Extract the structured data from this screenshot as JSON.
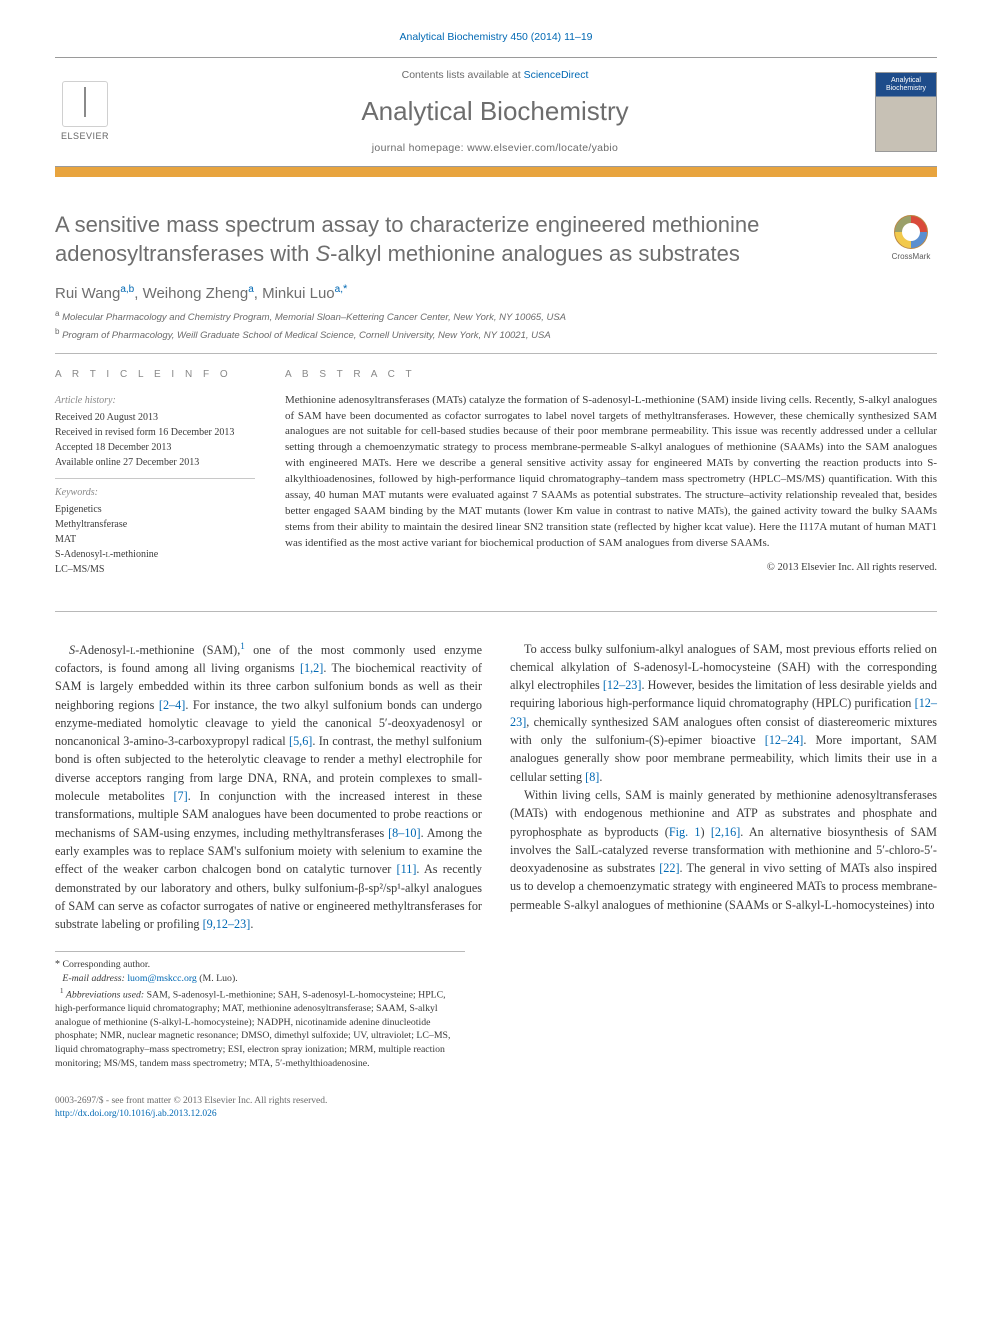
{
  "header": {
    "reference": "Analytical Biochemistry 450 (2014) 11–19",
    "contents_prefix": "Contents lists available at ",
    "contents_link": "ScienceDirect",
    "journal": "Analytical Biochemistry",
    "homepage_prefix": "journal homepage: ",
    "homepage_url": "www.elsevier.com/locate/yabio",
    "publisher": "ELSEVIER",
    "cover_label": "Analytical Biochemistry"
  },
  "crossmark": {
    "label": "CrossMark"
  },
  "title": {
    "pre": "A sensitive mass spectrum assay to characterize engineered methionine adenosyltransferases with ",
    "ital": "S",
    "post": "-alkyl methionine analogues as substrates"
  },
  "authors": {
    "a1": {
      "name": "Rui Wang",
      "aff": "a,b"
    },
    "a2": {
      "name": "Weihong Zheng",
      "aff": "a"
    },
    "a3": {
      "name": "Minkui Luo",
      "aff": "a,",
      "star": "*"
    }
  },
  "affiliations": {
    "a": "Molecular Pharmacology and Chemistry Program, Memorial Sloan–Kettering Cancer Center, New York, NY 10065, USA",
    "b": "Program of Pharmacology, Weill Graduate School of Medical Science, Cornell University, New York, NY 10021, USA"
  },
  "article_info": {
    "heading": "A R T I C L E   I N F O",
    "history_head": "Article history:",
    "history": {
      "received": "Received 20 August 2013",
      "revised": "Received in revised form 16 December 2013",
      "accepted": "Accepted 18 December 2013",
      "online": "Available online 27 December 2013"
    },
    "keywords_head": "Keywords:",
    "keywords": {
      "k1": "Epigenetics",
      "k2": "Methyltransferase",
      "k3": "MAT",
      "k4": "S-Adenosyl-L-methionine",
      "k5": "LC–MS/MS"
    }
  },
  "abstract": {
    "heading": "A B S T R A C T",
    "text": "Methionine adenosyltransferases (MATs) catalyze the formation of S-adenosyl-L-methionine (SAM) inside living cells. Recently, S-alkyl analogues of SAM have been documented as cofactor surrogates to label novel targets of methyltransferases. However, these chemically synthesized SAM analogues are not suitable for cell-based studies because of their poor membrane permeability. This issue was recently addressed under a cellular setting through a chemoenzymatic strategy to process membrane-permeable S-alkyl analogues of methionine (SAAMs) into the SAM analogues with engineered MATs. Here we describe a general sensitive activity assay for engineered MATs by converting the reaction products into S-alkylthioadenosines, followed by high-performance liquid chromatography–tandem mass spectrometry (HPLC–MS/MS) quantification. With this assay, 40 human MAT mutants were evaluated against 7 SAAMs as potential substrates. The structure–activity relationship revealed that, besides better engaged SAAM binding by the MAT mutants (lower Km value in contrast to native MATs), the gained activity toward the bulky SAAMs stems from their ability to maintain the desired linear SN2 transition state (reflected by higher kcat value). Here the I117A mutant of human MAT1 was identified as the most active variant for biochemical production of SAM analogues from diverse SAAMs.",
    "copyright": "© 2013 Elsevier Inc. All rights reserved."
  },
  "body": {
    "p1a": "S-Adenosyl-L-methionine (SAM),",
    "p1b": " one of the most commonly used enzyme cofactors, is found among all living organisms ",
    "r1": "[1,2]",
    "p1c": ". The biochemical reactivity of SAM is largely embedded within its three carbon sulfonium bonds as well as their neighboring regions ",
    "r2": "[2–4]",
    "p1d": ". For instance, the two alkyl sulfonium bonds can undergo enzyme-mediated homolytic cleavage to yield the canonical 5′-deoxyadenosyl or noncanonical 3-amino-3-carboxypropyl radical ",
    "r3": "[5,6]",
    "p1e": ". In contrast, the methyl sulfonium bond is often subjected to the heterolytic cleavage to render a methyl electrophile for diverse acceptors ranging from large DNA, RNA, and protein complexes to small-molecule metabolites ",
    "r4": "[7]",
    "p1f": ". In conjunction with the increased interest in these transformations, multiple SAM analogues have been documented to probe reactions or mechanisms of SAM-using enzymes, including methyltransferases ",
    "r5": "[8–10]",
    "p1g": ". Among the early examples was to replace SAM's sulfonium moiety with selenium to examine",
    "p2a": "the effect of the weaker carbon chalcogen bond on catalytic turnover ",
    "r6": "[11]",
    "p2b": ". As recently demonstrated by our laboratory and others, bulky sulfonium-β-sp²/sp¹-alkyl analogues of SAM can serve as cofactor surrogates of native or engineered methyltransferases for substrate labeling or profiling ",
    "r7": "[9,12–23]",
    "p2c": ".",
    "p3a": "To access bulky sulfonium-alkyl analogues of SAM, most previous efforts relied on chemical alkylation of S-adenosyl-L-homocysteine (SAH) with the corresponding alkyl electrophiles ",
    "r8": "[12–23]",
    "p3b": ". However, besides the limitation of less desirable yields and requiring laborious high-performance liquid chromatography (HPLC) purification ",
    "r9": "[12–23]",
    "p3c": ", chemically synthesized SAM analogues often consist of diastereomeric mixtures with only the sulfonium-(S)-epimer bioactive ",
    "r10": "[12–24]",
    "p3d": ". More important, SAM analogues generally show poor membrane permeability, which limits their use in a cellular setting ",
    "r11": "[8]",
    "p3e": ".",
    "p4a": "Within living cells, SAM is mainly generated by methionine adenosyltransferases (MATs) with endogenous methionine and ATP as substrates and phosphate and pyrophosphate as byproducts (",
    "r12": "Fig. 1",
    "p4b": ") ",
    "r13": "[2,16]",
    "p4c": ". An alternative biosynthesis of SAM involves the SalL-catalyzed reverse transformation with methionine and 5′-chloro-5′-deoxyadenosine as substrates ",
    "r14": "[22]",
    "p4d": ". The general in vivo setting of MATs also inspired us to develop a chemoenzymatic strategy with engineered MATs to process membrane-permeable S-alkyl analogues of methionine (SAAMs or S-alkyl-L-homocysteines) into"
  },
  "footnotes": {
    "corr_star": "*",
    "corr": " Corresponding author.",
    "email_label": "E-mail address: ",
    "email": "luom@mskcc.org",
    "email_who": " (M. Luo).",
    "abbr_sup": "1",
    "abbr_label": " Abbreviations used:",
    "abbr": " SAM, S-adenosyl-L-methionine; SAH, S-adenosyl-L-homocysteine; HPLC, high-performance liquid chromatography; MAT, methionine adenosyltransferase; SAAM, S-alkyl analogue of methionine (S-alkyl-L-homocysteine); NADPH, nicotinamide adenine dinucleotide phosphate; NMR, nuclear magnetic resonance; DMSO, dimethyl sulfoxide; UV, ultraviolet; LC–MS, liquid chromatography–mass spectrometry; ESI, electron spray ionization; MRM, multiple reaction monitoring; MS/MS, tandem mass spectrometry; MTA, 5′-methylthioadenosine."
  },
  "footer": {
    "issn": "0003-2697/$ - see front matter © 2013 Elsevier Inc. All rights reserved.",
    "doi": "http://dx.doi.org/10.1016/j.ab.2013.12.026"
  },
  "colors": {
    "link": "#0068b3",
    "gold": "#e8a43e",
    "grey_text": "#6e6e6e",
    "rule": "#b8b8b8"
  }
}
